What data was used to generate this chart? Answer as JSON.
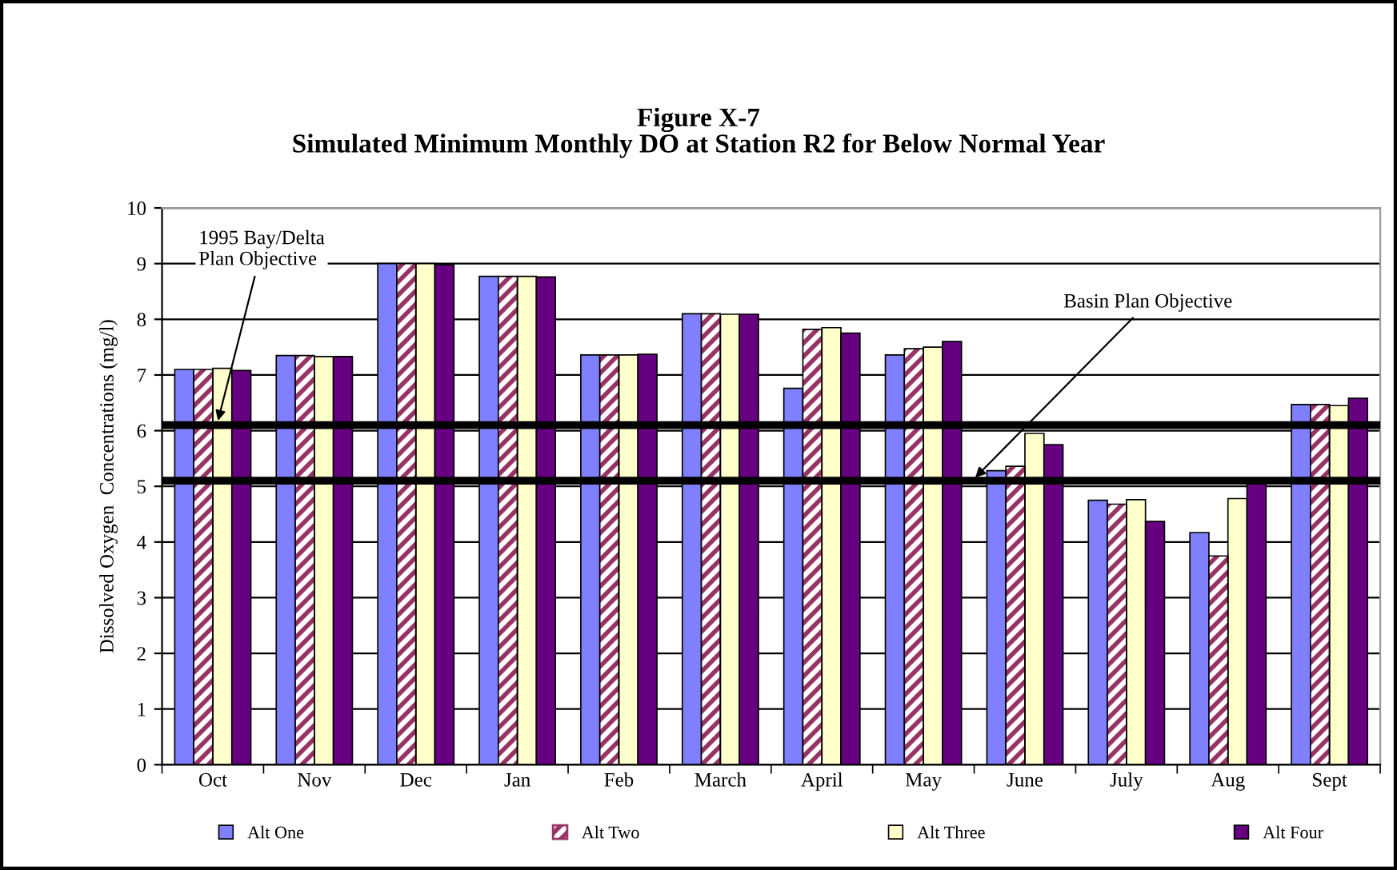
{
  "chart_data": {
    "type": "bar",
    "title": "Figure X-7",
    "subtitle": "Simulated Minimum Monthly DO at Station R2 for Below Normal Year",
    "ylabel": "Dissolved Oxygen  Concentrations (mg/l)",
    "categories": [
      "Oct",
      "Nov",
      "Dec",
      "Jan",
      "Feb",
      "March",
      "April",
      "May",
      "June",
      "July",
      "Aug",
      "Sept"
    ],
    "series": [
      {
        "name": "Alt One",
        "color": "#8080ff",
        "values": [
          7.1,
          7.35,
          9.0,
          8.77,
          7.36,
          8.1,
          6.76,
          7.36,
          5.28,
          4.75,
          4.17,
          6.47
        ]
      },
      {
        "name": "Alt Two",
        "color": "#993366",
        "values": [
          7.1,
          7.35,
          9.0,
          8.77,
          7.36,
          8.1,
          7.82,
          7.47,
          5.36,
          4.68,
          3.75,
          6.47
        ]
      },
      {
        "name": "Alt Three",
        "color": "#ffffcc",
        "values": [
          7.12,
          7.33,
          9.0,
          8.77,
          7.36,
          8.09,
          7.85,
          7.5,
          5.95,
          4.76,
          4.78,
          6.45
        ]
      },
      {
        "name": "Alt Four",
        "color": "#660080",
        "values": [
          7.08,
          7.33,
          8.98,
          8.76,
          7.37,
          8.09,
          7.75,
          7.6,
          5.75,
          4.37,
          5.06,
          6.58
        ]
      }
    ],
    "ylim": [
      0,
      10
    ],
    "yticks": [
      0,
      1,
      2,
      3,
      4,
      5,
      6,
      7,
      8,
      9,
      10
    ],
    "ref_lines": [
      {
        "axis": "y",
        "value": 6.1,
        "label": "1995 Bay/Delta\nPlan Objective",
        "color": "#000000"
      },
      {
        "axis": "y",
        "value": 5.1,
        "label": "Basin Plan Objective",
        "color": "#000000"
      }
    ],
    "grid": "y",
    "legend": "bottom"
  }
}
